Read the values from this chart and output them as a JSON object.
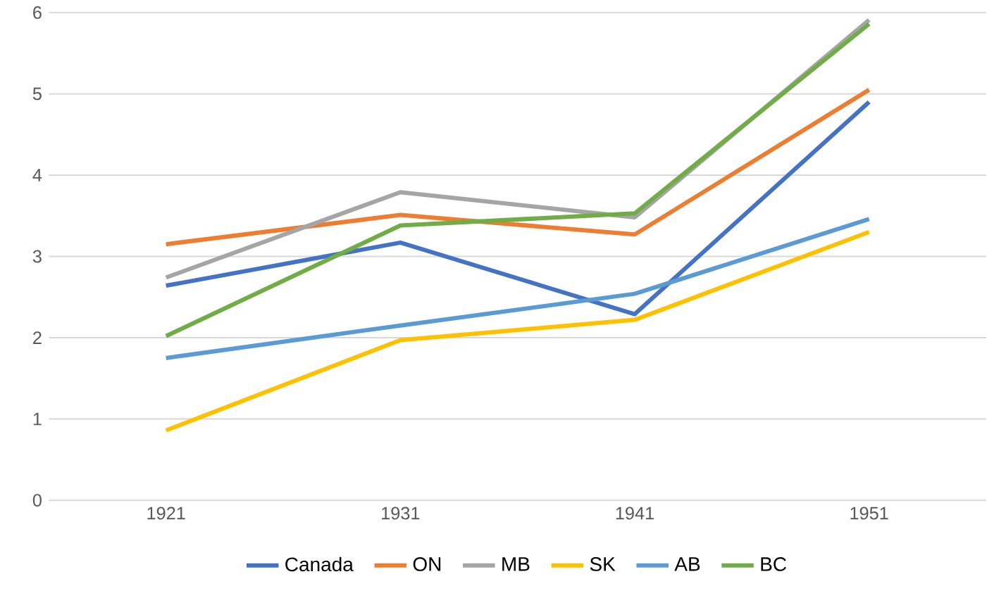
{
  "chart_data": {
    "type": "line",
    "categories": [
      "1921",
      "1931",
      "1941",
      "1951"
    ],
    "ylim": [
      0,
      6
    ],
    "yticks": [
      0,
      1,
      2,
      3,
      4,
      5,
      6
    ],
    "grid": "y",
    "legend": "bottom",
    "marker": "none",
    "line_style": "solid",
    "series": [
      {
        "name": "Canada",
        "color": "#4472c4",
        "values": [
          2.64,
          3.17,
          2.29,
          4.9
        ]
      },
      {
        "name": "ON",
        "color": "#ed7d31",
        "values": [
          3.15,
          3.51,
          3.27,
          5.05
        ]
      },
      {
        "name": "MB",
        "color": "#a5a5a5",
        "values": [
          2.74,
          3.79,
          3.48,
          5.91
        ]
      },
      {
        "name": "SK",
        "color": "#ffc000",
        "values": [
          0.86,
          1.97,
          2.22,
          3.3
        ]
      },
      {
        "name": "AB",
        "color": "#5b9bd5",
        "values": [
          1.75,
          2.15,
          2.54,
          3.46
        ]
      },
      {
        "name": "BC",
        "color": "#70ad47",
        "values": [
          2.02,
          3.38,
          3.53,
          5.86
        ]
      }
    ]
  }
}
